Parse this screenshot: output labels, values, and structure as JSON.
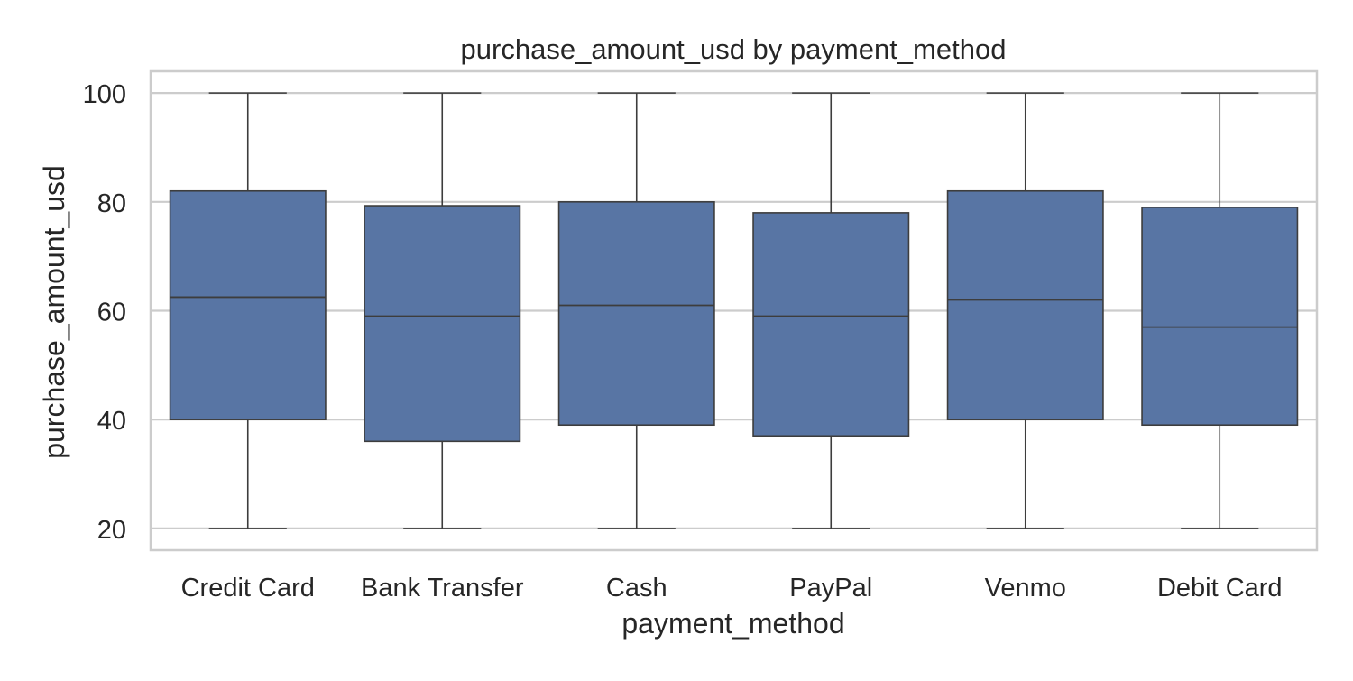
{
  "chart_data": {
    "type": "box",
    "title": "purchase_amount_usd by payment_method",
    "xlabel": "payment_method",
    "ylabel": "purchase_amount_usd",
    "categories": [
      "Credit Card",
      "Bank Transfer",
      "Cash",
      "PayPal",
      "Venmo",
      "Debit Card"
    ],
    "boxes": [
      {
        "category": "Credit Card",
        "min": 20,
        "q1": 40,
        "median": 62.5,
        "q3": 82,
        "max": 100
      },
      {
        "category": "Bank Transfer",
        "min": 20,
        "q1": 36,
        "median": 59,
        "q3": 79.3,
        "max": 100
      },
      {
        "category": "Cash",
        "min": 20,
        "q1": 39,
        "median": 61,
        "q3": 80,
        "max": 100
      },
      {
        "category": "PayPal",
        "min": 20,
        "q1": 37,
        "median": 59,
        "q3": 78,
        "max": 100
      },
      {
        "category": "Venmo",
        "min": 20,
        "q1": 40,
        "median": 62,
        "q3": 82,
        "max": 100
      },
      {
        "category": "Debit Card",
        "min": 20,
        "q1": 39,
        "median": 57,
        "q3": 79,
        "max": 100
      }
    ],
    "yticks": [
      20,
      40,
      60,
      80,
      100
    ],
    "ylim": [
      16,
      104
    ],
    "grid": "horizontal",
    "colors": {
      "box_fill": "#5875a4",
      "line": "#3d3d3d",
      "grid": "#cccccc",
      "frame": "#cccccc"
    }
  }
}
